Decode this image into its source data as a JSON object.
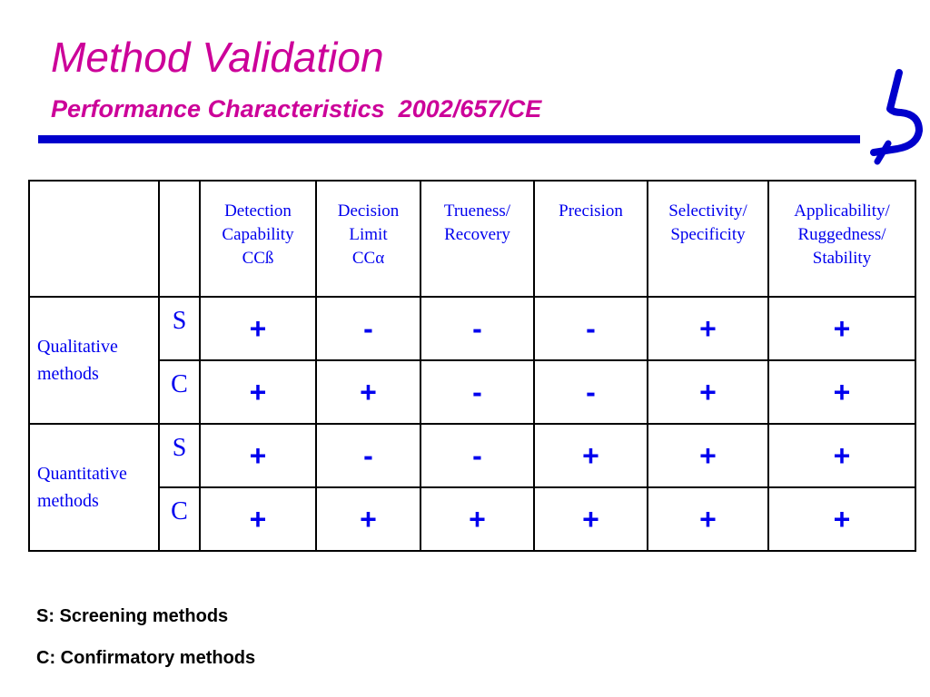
{
  "title": "Method Validation",
  "subtitle": "Performance Characteristics  2002/657/CE",
  "logo_icon": "lambda-like-logo-icon",
  "colors": {
    "title": "#cc0099",
    "rule": "#0000cc",
    "table_text": "#0000ee"
  },
  "table": {
    "headers": [
      "Detection Capability CCß",
      "Decision Limit CCα",
      "Trueness/ Recovery",
      "Precision",
      "Selectivity/ Specificity",
      "Applicability/ Ruggedness/ Stability"
    ],
    "header_lines": [
      [
        "Detection",
        "Capability",
        "CCß"
      ],
      [
        "Decision",
        "Limit",
        "CCα"
      ],
      [
        "Trueness/",
        "Recovery"
      ],
      [
        "Precision"
      ],
      [
        "Selectivity/",
        "Specificity"
      ],
      [
        "Applicability/",
        "Ruggedness/",
        "Stability"
      ]
    ],
    "groups": [
      {
        "label_lines": [
          "Qualitative",
          "methods"
        ],
        "rows": [
          {
            "type": "S",
            "values": [
              "+",
              "-",
              "-",
              "-",
              "+",
              "+"
            ]
          },
          {
            "type": "C",
            "values": [
              "+",
              "+",
              "-",
              "-",
              "+",
              "+"
            ]
          }
        ]
      },
      {
        "label_lines": [
          "Quantitative",
          "methods"
        ],
        "rows": [
          {
            "type": "S",
            "values": [
              "+",
              "-",
              "-",
              "+",
              "+",
              "+"
            ]
          },
          {
            "type": "C",
            "values": [
              "+",
              "+",
              "+",
              "+",
              "+",
              "+"
            ]
          }
        ]
      }
    ]
  },
  "legend": {
    "screening": "S: Screening methods",
    "confirmatory": "C: Confirmatory methods"
  }
}
